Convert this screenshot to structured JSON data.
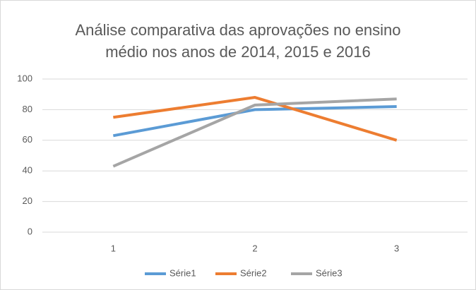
{
  "chart_data": {
    "type": "line",
    "title": "Análise comparativa das aprovações no ensino médio nos anos de 2014, 2015 e 2016",
    "categories": [
      "1",
      "2",
      "3"
    ],
    "series": [
      {
        "name": "Série1",
        "color": "#5b9bd5",
        "values": [
          63,
          80,
          82
        ]
      },
      {
        "name": "Série2",
        "color": "#ed7d31",
        "values": [
          75,
          88,
          60
        ]
      },
      {
        "name": "Série3",
        "color": "#a5a5a5",
        "values": [
          43,
          83,
          87
        ]
      }
    ],
    "ylim": [
      0,
      100
    ],
    "yticks": [
      0,
      20,
      40,
      60,
      80,
      100
    ],
    "grid": true,
    "legend": "bottom"
  }
}
